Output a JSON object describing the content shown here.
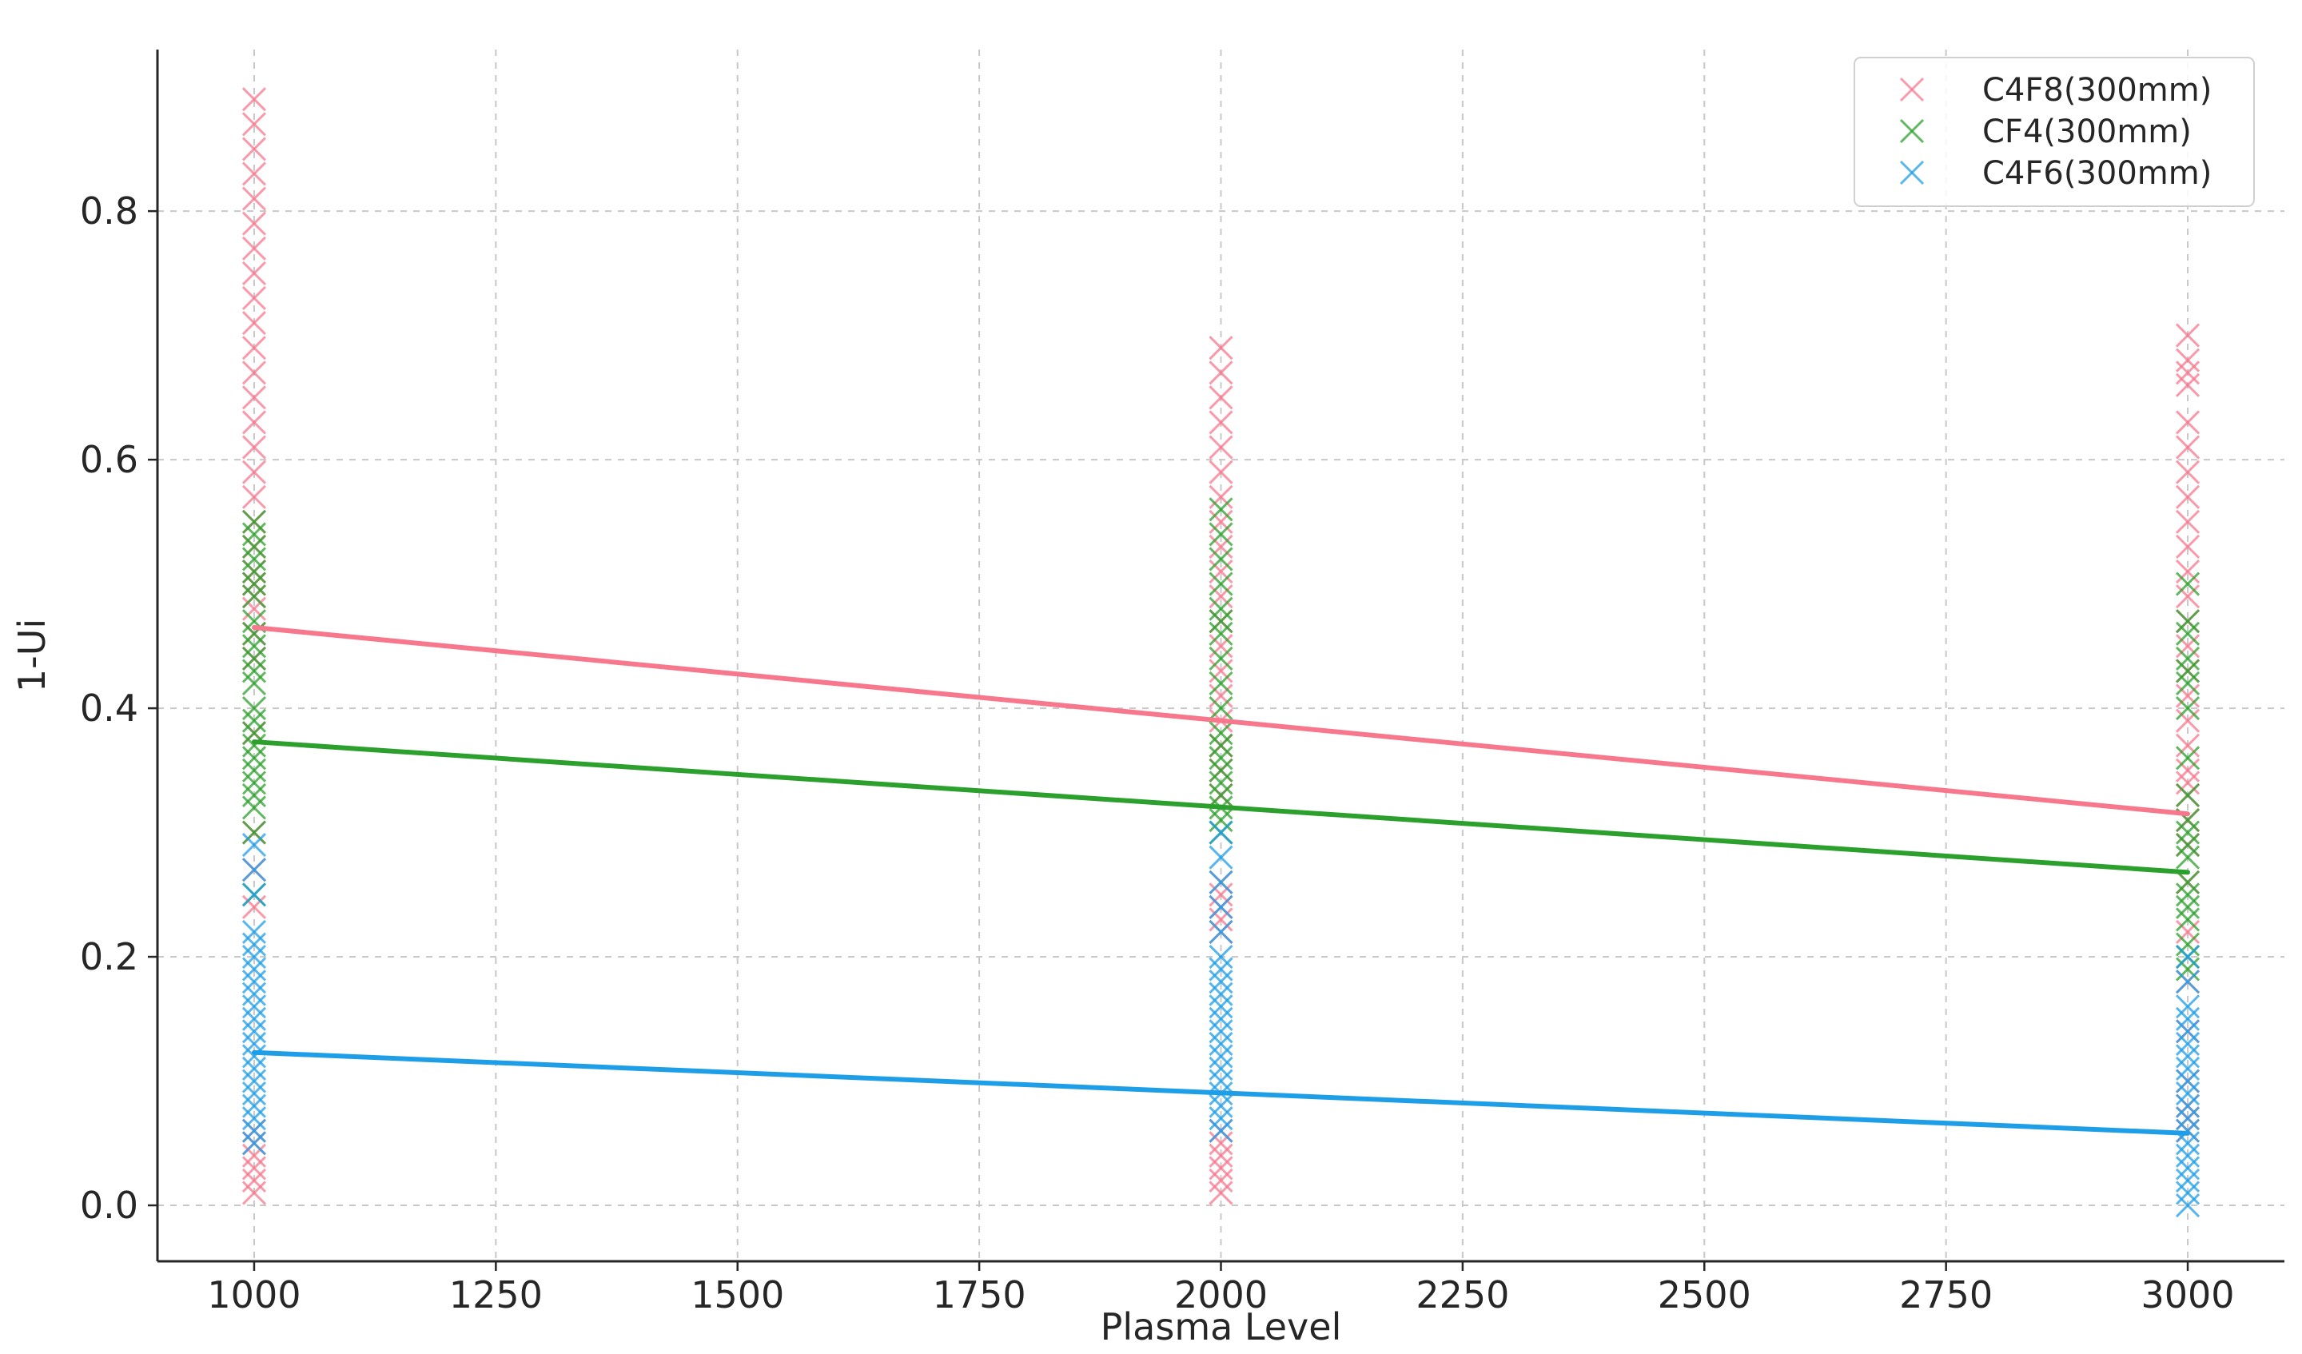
{
  "chart_data": {
    "type": "scatter",
    "title": "",
    "xlabel": "Plasma Level",
    "ylabel": "1-Ui",
    "xlim": [
      900,
      3100
    ],
    "ylim": [
      -0.045,
      0.93
    ],
    "xticks": [
      1000,
      1250,
      1500,
      1750,
      2000,
      2250,
      2500,
      2750,
      3000
    ],
    "xtick_labels": [
      "1000",
      "1250",
      "1500",
      "1750",
      "2000",
      "2250",
      "2500",
      "2750",
      "3000"
    ],
    "yticks": [
      0.0,
      0.2,
      0.4,
      0.6,
      0.8
    ],
    "ytick_labels": [
      "0.0",
      "0.2",
      "0.4",
      "0.6",
      "0.8"
    ],
    "grid": true,
    "legend_position": "top-right",
    "marker": "x",
    "series": [
      {
        "name": "C4F8(300mm)",
        "color": "#f7778c",
        "points": [
          {
            "x": 1000,
            "y": 0.89
          },
          {
            "x": 1000,
            "y": 0.87
          },
          {
            "x": 1000,
            "y": 0.85
          },
          {
            "x": 1000,
            "y": 0.83
          },
          {
            "x": 1000,
            "y": 0.81
          },
          {
            "x": 1000,
            "y": 0.79
          },
          {
            "x": 1000,
            "y": 0.77
          },
          {
            "x": 1000,
            "y": 0.75
          },
          {
            "x": 1000,
            "y": 0.73
          },
          {
            "x": 1000,
            "y": 0.71
          },
          {
            "x": 1000,
            "y": 0.69
          },
          {
            "x": 1000,
            "y": 0.67
          },
          {
            "x": 1000,
            "y": 0.65
          },
          {
            "x": 1000,
            "y": 0.63
          },
          {
            "x": 1000,
            "y": 0.61
          },
          {
            "x": 1000,
            "y": 0.59
          },
          {
            "x": 1000,
            "y": 0.57
          },
          {
            "x": 1000,
            "y": 0.55
          },
          {
            "x": 1000,
            "y": 0.53
          },
          {
            "x": 1000,
            "y": 0.51
          },
          {
            "x": 1000,
            "y": 0.5
          },
          {
            "x": 1000,
            "y": 0.49
          },
          {
            "x": 1000,
            "y": 0.48
          },
          {
            "x": 1000,
            "y": 0.46
          },
          {
            "x": 1000,
            "y": 0.44
          },
          {
            "x": 1000,
            "y": 0.38
          },
          {
            "x": 1000,
            "y": 0.3
          },
          {
            "x": 1000,
            "y": 0.27
          },
          {
            "x": 1000,
            "y": 0.24
          },
          {
            "x": 1000,
            "y": 0.06
          },
          {
            "x": 1000,
            "y": 0.05
          },
          {
            "x": 1000,
            "y": 0.04
          },
          {
            "x": 1000,
            "y": 0.03
          },
          {
            "x": 1000,
            "y": 0.02
          },
          {
            "x": 1000,
            "y": 0.01
          },
          {
            "x": 2000,
            "y": 0.69
          },
          {
            "x": 2000,
            "y": 0.67
          },
          {
            "x": 2000,
            "y": 0.65
          },
          {
            "x": 2000,
            "y": 0.63
          },
          {
            "x": 2000,
            "y": 0.61
          },
          {
            "x": 2000,
            "y": 0.59
          },
          {
            "x": 2000,
            "y": 0.57
          },
          {
            "x": 2000,
            "y": 0.55
          },
          {
            "x": 2000,
            "y": 0.53
          },
          {
            "x": 2000,
            "y": 0.51
          },
          {
            "x": 2000,
            "y": 0.49
          },
          {
            "x": 2000,
            "y": 0.47
          },
          {
            "x": 2000,
            "y": 0.45
          },
          {
            "x": 2000,
            "y": 0.43
          },
          {
            "x": 2000,
            "y": 0.41
          },
          {
            "x": 2000,
            "y": 0.39
          },
          {
            "x": 2000,
            "y": 0.37
          },
          {
            "x": 2000,
            "y": 0.35
          },
          {
            "x": 2000,
            "y": 0.33
          },
          {
            "x": 2000,
            "y": 0.26
          },
          {
            "x": 2000,
            "y": 0.25
          },
          {
            "x": 2000,
            "y": 0.24
          },
          {
            "x": 2000,
            "y": 0.23
          },
          {
            "x": 2000,
            "y": 0.22
          },
          {
            "x": 2000,
            "y": 0.06
          },
          {
            "x": 2000,
            "y": 0.05
          },
          {
            "x": 2000,
            "y": 0.04
          },
          {
            "x": 2000,
            "y": 0.03
          },
          {
            "x": 2000,
            "y": 0.02
          },
          {
            "x": 2000,
            "y": 0.01
          },
          {
            "x": 3000,
            "y": 0.7
          },
          {
            "x": 3000,
            "y": 0.68
          },
          {
            "x": 3000,
            "y": 0.67
          },
          {
            "x": 3000,
            "y": 0.66
          },
          {
            "x": 3000,
            "y": 0.63
          },
          {
            "x": 3000,
            "y": 0.61
          },
          {
            "x": 3000,
            "y": 0.59
          },
          {
            "x": 3000,
            "y": 0.57
          },
          {
            "x": 3000,
            "y": 0.55
          },
          {
            "x": 3000,
            "y": 0.53
          },
          {
            "x": 3000,
            "y": 0.51
          },
          {
            "x": 3000,
            "y": 0.49
          },
          {
            "x": 3000,
            "y": 0.47
          },
          {
            "x": 3000,
            "y": 0.45
          },
          {
            "x": 3000,
            "y": 0.43
          },
          {
            "x": 3000,
            "y": 0.41
          },
          {
            "x": 3000,
            "y": 0.39
          },
          {
            "x": 3000,
            "y": 0.37
          },
          {
            "x": 3000,
            "y": 0.35
          },
          {
            "x": 3000,
            "y": 0.34
          },
          {
            "x": 3000,
            "y": 0.33
          },
          {
            "x": 3000,
            "y": 0.31
          },
          {
            "x": 3000,
            "y": 0.29
          },
          {
            "x": 3000,
            "y": 0.26
          },
          {
            "x": 3000,
            "y": 0.22
          },
          {
            "x": 3000,
            "y": 0.18
          },
          {
            "x": 3000,
            "y": 0.14
          },
          {
            "x": 3000,
            "y": 0.1
          },
          {
            "x": 3000,
            "y": 0.08
          },
          {
            "x": 3000,
            "y": 0.07
          },
          {
            "x": 3000,
            "y": 0.06
          }
        ],
        "trend": [
          {
            "x": 1000,
            "y": 0.465
          },
          {
            "x": 3000,
            "y": 0.315
          }
        ]
      },
      {
        "name": "CF4(300mm)",
        "color": "#2ca02c",
        "points": [
          {
            "x": 1000,
            "y": 0.55
          },
          {
            "x": 1000,
            "y": 0.54
          },
          {
            "x": 1000,
            "y": 0.53
          },
          {
            "x": 1000,
            "y": 0.52
          },
          {
            "x": 1000,
            "y": 0.51
          },
          {
            "x": 1000,
            "y": 0.5
          },
          {
            "x": 1000,
            "y": 0.49
          },
          {
            "x": 1000,
            "y": 0.47
          },
          {
            "x": 1000,
            "y": 0.46
          },
          {
            "x": 1000,
            "y": 0.45
          },
          {
            "x": 1000,
            "y": 0.44
          },
          {
            "x": 1000,
            "y": 0.43
          },
          {
            "x": 1000,
            "y": 0.42
          },
          {
            "x": 1000,
            "y": 0.4
          },
          {
            "x": 1000,
            "y": 0.39
          },
          {
            "x": 1000,
            "y": 0.38
          },
          {
            "x": 1000,
            "y": 0.37
          },
          {
            "x": 1000,
            "y": 0.36
          },
          {
            "x": 1000,
            "y": 0.35
          },
          {
            "x": 1000,
            "y": 0.34
          },
          {
            "x": 1000,
            "y": 0.33
          },
          {
            "x": 1000,
            "y": 0.32
          },
          {
            "x": 1000,
            "y": 0.3
          },
          {
            "x": 1000,
            "y": 0.25
          },
          {
            "x": 2000,
            "y": 0.56
          },
          {
            "x": 2000,
            "y": 0.54
          },
          {
            "x": 2000,
            "y": 0.52
          },
          {
            "x": 2000,
            "y": 0.5
          },
          {
            "x": 2000,
            "y": 0.48
          },
          {
            "x": 2000,
            "y": 0.47
          },
          {
            "x": 2000,
            "y": 0.46
          },
          {
            "x": 2000,
            "y": 0.44
          },
          {
            "x": 2000,
            "y": 0.42
          },
          {
            "x": 2000,
            "y": 0.4
          },
          {
            "x": 2000,
            "y": 0.38
          },
          {
            "x": 2000,
            "y": 0.37
          },
          {
            "x": 2000,
            "y": 0.36
          },
          {
            "x": 2000,
            "y": 0.35
          },
          {
            "x": 2000,
            "y": 0.34
          },
          {
            "x": 2000,
            "y": 0.33
          },
          {
            "x": 2000,
            "y": 0.32
          },
          {
            "x": 2000,
            "y": 0.31
          },
          {
            "x": 2000,
            "y": 0.3
          },
          {
            "x": 3000,
            "y": 0.5
          },
          {
            "x": 3000,
            "y": 0.47
          },
          {
            "x": 3000,
            "y": 0.46
          },
          {
            "x": 3000,
            "y": 0.44
          },
          {
            "x": 3000,
            "y": 0.43
          },
          {
            "x": 3000,
            "y": 0.42
          },
          {
            "x": 3000,
            "y": 0.4
          },
          {
            "x": 3000,
            "y": 0.36
          },
          {
            "x": 3000,
            "y": 0.33
          },
          {
            "x": 3000,
            "y": 0.31
          },
          {
            "x": 3000,
            "y": 0.3
          },
          {
            "x": 3000,
            "y": 0.29
          },
          {
            "x": 3000,
            "y": 0.28
          },
          {
            "x": 3000,
            "y": 0.26
          },
          {
            "x": 3000,
            "y": 0.25
          },
          {
            "x": 3000,
            "y": 0.24
          },
          {
            "x": 3000,
            "y": 0.23
          },
          {
            "x": 3000,
            "y": 0.21
          },
          {
            "x": 3000,
            "y": 0.2
          },
          {
            "x": 3000,
            "y": 0.19
          }
        ],
        "trend": [
          {
            "x": 1000,
            "y": 0.373
          },
          {
            "x": 3000,
            "y": 0.268
          }
        ]
      },
      {
        "name": "C4F6(300mm)",
        "color": "#1f9ee8",
        "points": [
          {
            "x": 1000,
            "y": 0.29
          },
          {
            "x": 1000,
            "y": 0.27
          },
          {
            "x": 1000,
            "y": 0.25
          },
          {
            "x": 1000,
            "y": 0.22
          },
          {
            "x": 1000,
            "y": 0.21
          },
          {
            "x": 1000,
            "y": 0.2
          },
          {
            "x": 1000,
            "y": 0.19
          },
          {
            "x": 1000,
            "y": 0.18
          },
          {
            "x": 1000,
            "y": 0.17
          },
          {
            "x": 1000,
            "y": 0.16
          },
          {
            "x": 1000,
            "y": 0.15
          },
          {
            "x": 1000,
            "y": 0.14
          },
          {
            "x": 1000,
            "y": 0.13
          },
          {
            "x": 1000,
            "y": 0.12
          },
          {
            "x": 1000,
            "y": 0.11
          },
          {
            "x": 1000,
            "y": 0.1
          },
          {
            "x": 1000,
            "y": 0.09
          },
          {
            "x": 1000,
            "y": 0.08
          },
          {
            "x": 1000,
            "y": 0.07
          },
          {
            "x": 1000,
            "y": 0.06
          },
          {
            "x": 1000,
            "y": 0.05
          },
          {
            "x": 2000,
            "y": 0.3
          },
          {
            "x": 2000,
            "y": 0.28
          },
          {
            "x": 2000,
            "y": 0.26
          },
          {
            "x": 2000,
            "y": 0.24
          },
          {
            "x": 2000,
            "y": 0.22
          },
          {
            "x": 2000,
            "y": 0.2
          },
          {
            "x": 2000,
            "y": 0.19
          },
          {
            "x": 2000,
            "y": 0.18
          },
          {
            "x": 2000,
            "y": 0.17
          },
          {
            "x": 2000,
            "y": 0.16
          },
          {
            "x": 2000,
            "y": 0.15
          },
          {
            "x": 2000,
            "y": 0.14
          },
          {
            "x": 2000,
            "y": 0.13
          },
          {
            "x": 2000,
            "y": 0.12
          },
          {
            "x": 2000,
            "y": 0.11
          },
          {
            "x": 2000,
            "y": 0.1
          },
          {
            "x": 2000,
            "y": 0.09
          },
          {
            "x": 2000,
            "y": 0.08
          },
          {
            "x": 2000,
            "y": 0.07
          },
          {
            "x": 2000,
            "y": 0.06
          },
          {
            "x": 3000,
            "y": 0.2
          },
          {
            "x": 3000,
            "y": 0.18
          },
          {
            "x": 3000,
            "y": 0.16
          },
          {
            "x": 3000,
            "y": 0.15
          },
          {
            "x": 3000,
            "y": 0.14
          },
          {
            "x": 3000,
            "y": 0.13
          },
          {
            "x": 3000,
            "y": 0.12
          },
          {
            "x": 3000,
            "y": 0.11
          },
          {
            "x": 3000,
            "y": 0.1
          },
          {
            "x": 3000,
            "y": 0.09
          },
          {
            "x": 3000,
            "y": 0.08
          },
          {
            "x": 3000,
            "y": 0.07
          },
          {
            "x": 3000,
            "y": 0.06
          },
          {
            "x": 3000,
            "y": 0.05
          },
          {
            "x": 3000,
            "y": 0.04
          },
          {
            "x": 3000,
            "y": 0.03
          },
          {
            "x": 3000,
            "y": 0.02
          },
          {
            "x": 3000,
            "y": 0.01
          },
          {
            "x": 3000,
            "y": 0.0
          }
        ],
        "trend": [
          {
            "x": 1000,
            "y": 0.123
          },
          {
            "x": 3000,
            "y": 0.058
          }
        ]
      }
    ]
  }
}
